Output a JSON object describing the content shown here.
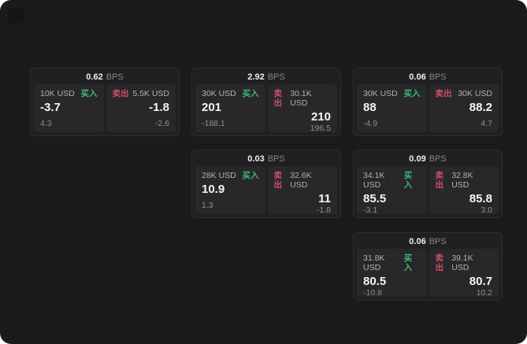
{
  "labels": {
    "bps_unit": "BPS",
    "buy": "买入",
    "sell": "卖出"
  },
  "colors": {
    "background": "#1b1b1d",
    "card": "#202023",
    "panel": "#28282b",
    "buy": "#3cba74",
    "sell": "#cb4e64"
  },
  "cards": [
    {
      "bps": "0.62",
      "left": {
        "amount": "10K USD",
        "value": "-3.7",
        "sub": "4.3"
      },
      "right": {
        "amount": "5.5K USD",
        "value": "-1.8",
        "sub": "-2.6"
      }
    },
    {
      "bps": "2.92",
      "left": {
        "amount": "30K USD",
        "value": "201",
        "sub": "-188.1"
      },
      "right": {
        "amount": "30.1K USD",
        "value": "210",
        "sub": "196.5"
      }
    },
    {
      "bps": "0.06",
      "left": {
        "amount": "30K USD",
        "value": "88",
        "sub": "-4.9"
      },
      "right": {
        "amount": "30K USD",
        "value": "88.2",
        "sub": "4.7"
      }
    },
    {
      "bps": "0.03",
      "left": {
        "amount": "28K USD",
        "value": "10.9",
        "sub": "1.3"
      },
      "right": {
        "amount": "32.6K USD",
        "value": "11",
        "sub": "-1.8"
      }
    },
    {
      "bps": "0.09",
      "left": {
        "amount": "34.1K USD",
        "value": "85.5",
        "sub": "-3.1"
      },
      "right": {
        "amount": "32.8K USD",
        "value": "85.8",
        "sub": "3.0"
      }
    },
    {
      "bps": "0.06",
      "left": {
        "amount": "31.8K USD",
        "value": "80.5",
        "sub": "-10.8"
      },
      "right": {
        "amount": "39.1K USD",
        "value": "80.7",
        "sub": "10.2"
      }
    }
  ]
}
